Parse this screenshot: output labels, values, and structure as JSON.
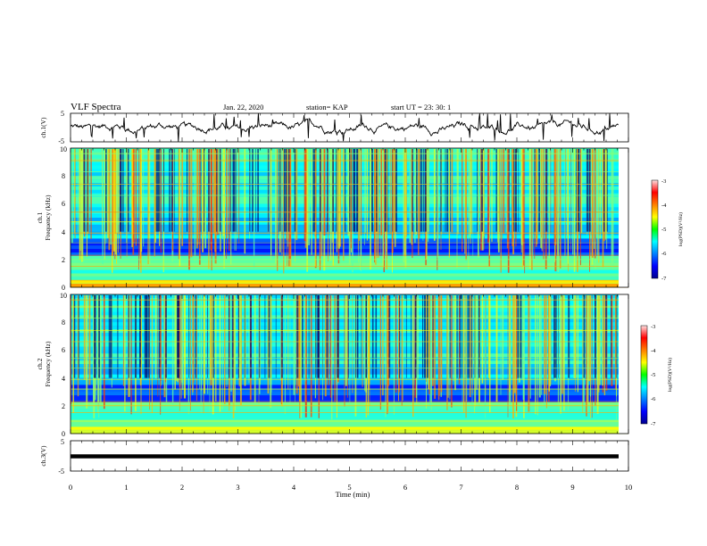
{
  "header": {
    "title": "VLF Spectra",
    "date": "Jan. 22, 2020",
    "station": "station= KAP",
    "start": "start  UT =   23: 30: 1"
  },
  "chart_data": [
    {
      "type": "line",
      "name": "ch1-waveform",
      "ylabel": "ch.1(V)",
      "ylim": [
        -5,
        5
      ],
      "yticks": [
        "5",
        "-5"
      ],
      "xlim": [
        0,
        10
      ],
      "trace": "noisy waveform mostly between -3 and 3 V with frequent spikes"
    },
    {
      "type": "heatmap",
      "name": "ch1-spectrogram",
      "ylabel_line1": "ch.1",
      "ylabel_line2": "Frequency (kHz)",
      "ylim": [
        0,
        10
      ],
      "yticks": [
        "0",
        "2",
        "4",
        "6",
        "8",
        "10"
      ],
      "xlim": [
        0,
        10
      ],
      "colorbar": {
        "label": "log(PSD)(V²/Hz)",
        "range": [
          -7,
          -3
        ],
        "ticks": [
          "-3",
          "-4",
          "-5",
          "-6",
          "-7"
        ]
      }
    },
    {
      "type": "heatmap",
      "name": "ch2-spectrogram",
      "ylabel_line1": "ch.2",
      "ylabel_line2": "Frequency (kHz)",
      "ylim": [
        0,
        10
      ],
      "yticks": [
        "0",
        "2",
        "4",
        "6",
        "8",
        "10"
      ],
      "xlim": [
        0,
        10
      ],
      "colorbar": {
        "label": "log(PSD)(V²/Hz)",
        "range": [
          -7,
          -3
        ],
        "ticks": [
          "-3",
          "-4",
          "-5",
          "-6",
          "-7"
        ]
      }
    },
    {
      "type": "line",
      "name": "ch3-waveform",
      "ylabel": "ch.3(V)",
      "ylim": [
        -5,
        5
      ],
      "yticks": [
        "5",
        "-5"
      ],
      "xlim": [
        0,
        10
      ],
      "trace": "flat line at about 0 V"
    }
  ],
  "xaxis": {
    "label": "Time (min)",
    "ticks": [
      "0",
      "1",
      "2",
      "3",
      "4",
      "5",
      "6",
      "7",
      "8",
      "9",
      "10"
    ]
  }
}
